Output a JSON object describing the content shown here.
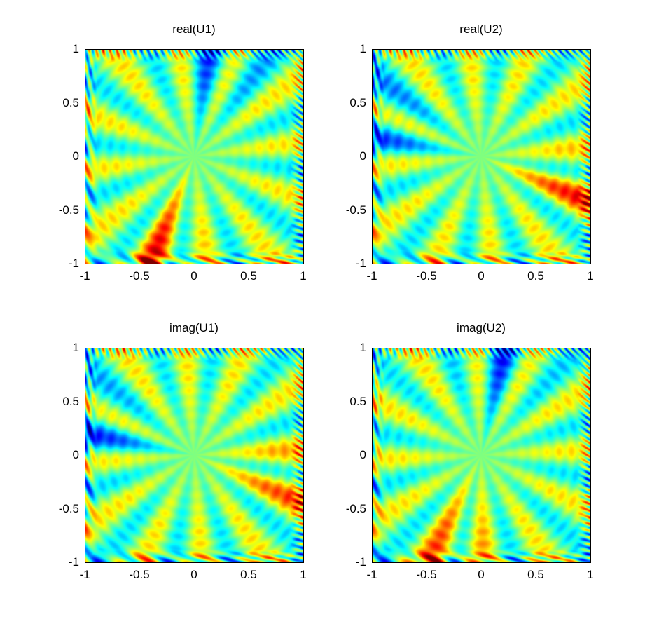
{
  "chart_data": [
    {
      "type": "heatmap",
      "title": "real(U1)",
      "xlim": [
        -1,
        1
      ],
      "ylim": [
        -1,
        1
      ],
      "xticks": [
        "-1",
        "-0.5",
        "0",
        "0.5",
        "1"
      ],
      "yticks": [
        "1",
        "0.5",
        "0",
        "-0.5",
        "-1"
      ],
      "colormap": "jet",
      "pattern": {
        "spokes": 12,
        "phase": 0.0,
        "hot_dir": -1.9,
        "cold_dir": 1.3
      }
    },
    {
      "type": "heatmap",
      "title": "real(U2)",
      "xlim": [
        -1,
        1
      ],
      "ylim": [
        -1,
        1
      ],
      "xticks": [
        "-1",
        "-0.5",
        "0",
        "0.5",
        "1"
      ],
      "yticks": [
        "1",
        "0.5",
        "0",
        "-0.5",
        "-1"
      ],
      "colormap": "jet",
      "pattern": {
        "spokes": 12,
        "phase": 0.35,
        "hot_dir": -0.3,
        "cold_dir": 2.8
      }
    },
    {
      "type": "heatmap",
      "title": "imag(U1)",
      "xlim": [
        -1,
        1
      ],
      "ylim": [
        -1,
        1
      ],
      "xticks": [
        "-1",
        "-0.5",
        "0",
        "0.5",
        "1"
      ],
      "yticks": [
        "1",
        "0.5",
        "0",
        "-0.5",
        "-1"
      ],
      "colormap": "jet",
      "pattern": {
        "spokes": 12,
        "phase": 0.7,
        "hot_dir": -0.25,
        "cold_dir": 2.85
      }
    },
    {
      "type": "heatmap",
      "title": "imag(U2)",
      "xlim": [
        -1,
        1
      ],
      "ylim": [
        -1,
        1
      ],
      "xticks": [
        "-1",
        "-0.5",
        "0",
        "0.5",
        "1"
      ],
      "yticks": [
        "1",
        "0.5",
        "0",
        "-0.5",
        "-1"
      ],
      "colormap": "jet",
      "pattern": {
        "spokes": 12,
        "phase": 1.05,
        "hot_dir": -1.85,
        "cold_dir": 1.35
      }
    }
  ]
}
